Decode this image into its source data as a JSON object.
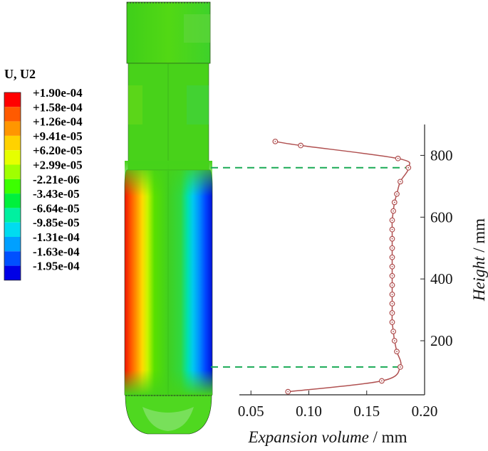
{
  "legend": {
    "title": "U, U2",
    "levels": [
      {
        "label": "+1.90e-04",
        "color": "#ff0000"
      },
      {
        "label": "+1.58e-04",
        "color": "#ff5a00"
      },
      {
        "label": "+1.26e-04",
        "color": "#ff9600"
      },
      {
        "label": "+9.41e-05",
        "color": "#ffd200"
      },
      {
        "label": "+6.20e-05",
        "color": "#e6ff00"
      },
      {
        "label": "+2.99e-05",
        "color": "#a0ff00"
      },
      {
        "label": "-2.21e-06",
        "color": "#3cff00"
      },
      {
        "label": "-3.43e-05",
        "color": "#00f03c"
      },
      {
        "label": "-6.64e-05",
        "color": "#00f0a0"
      },
      {
        "label": "-9.85e-05",
        "color": "#00dcf0"
      },
      {
        "label": "-1.31e-04",
        "color": "#00a0ff"
      },
      {
        "label": "-1.63e-04",
        "color": "#0050ff"
      },
      {
        "label": "-1.95e-04",
        "color": "#0000e6"
      }
    ]
  },
  "chart_data": {
    "type": "line",
    "x": [
      0.071,
      0.093,
      0.177,
      0.186,
      0.179,
      0.176,
      0.174,
      0.173,
      0.172,
      0.172,
      0.172,
      0.172,
      0.172,
      0.172,
      0.172,
      0.172,
      0.172,
      0.172,
      0.172,
      0.172,
      0.173,
      0.174,
      0.176,
      0.179,
      0.163,
      0.082
    ],
    "y": [
      845,
      832,
      790,
      760,
      715,
      675,
      648,
      620,
      590,
      560,
      530,
      500,
      470,
      440,
      410,
      380,
      350,
      320,
      290,
      260,
      230,
      200,
      165,
      115,
      70,
      35
    ],
    "xlim": [
      0.04,
      0.2
    ],
    "ylim": [
      25,
      900
    ],
    "xticks": [
      "0.05",
      "0.10",
      "0.15",
      "0.20"
    ],
    "xtick_values": [
      0.05,
      0.1,
      0.15,
      0.2
    ],
    "yticks": [
      "200",
      "400",
      "600",
      "800"
    ],
    "ytick_values": [
      200,
      400,
      600,
      800
    ],
    "xlabel_italic": "Expansion volume",
    "xlabel_unit": " / mm",
    "ylabel_italic": "Height",
    "ylabel_unit": " / mm",
    "reference_lines": [
      760,
      115
    ],
    "line_color": "#b05050",
    "reference_line_color": "#1aaa55"
  }
}
